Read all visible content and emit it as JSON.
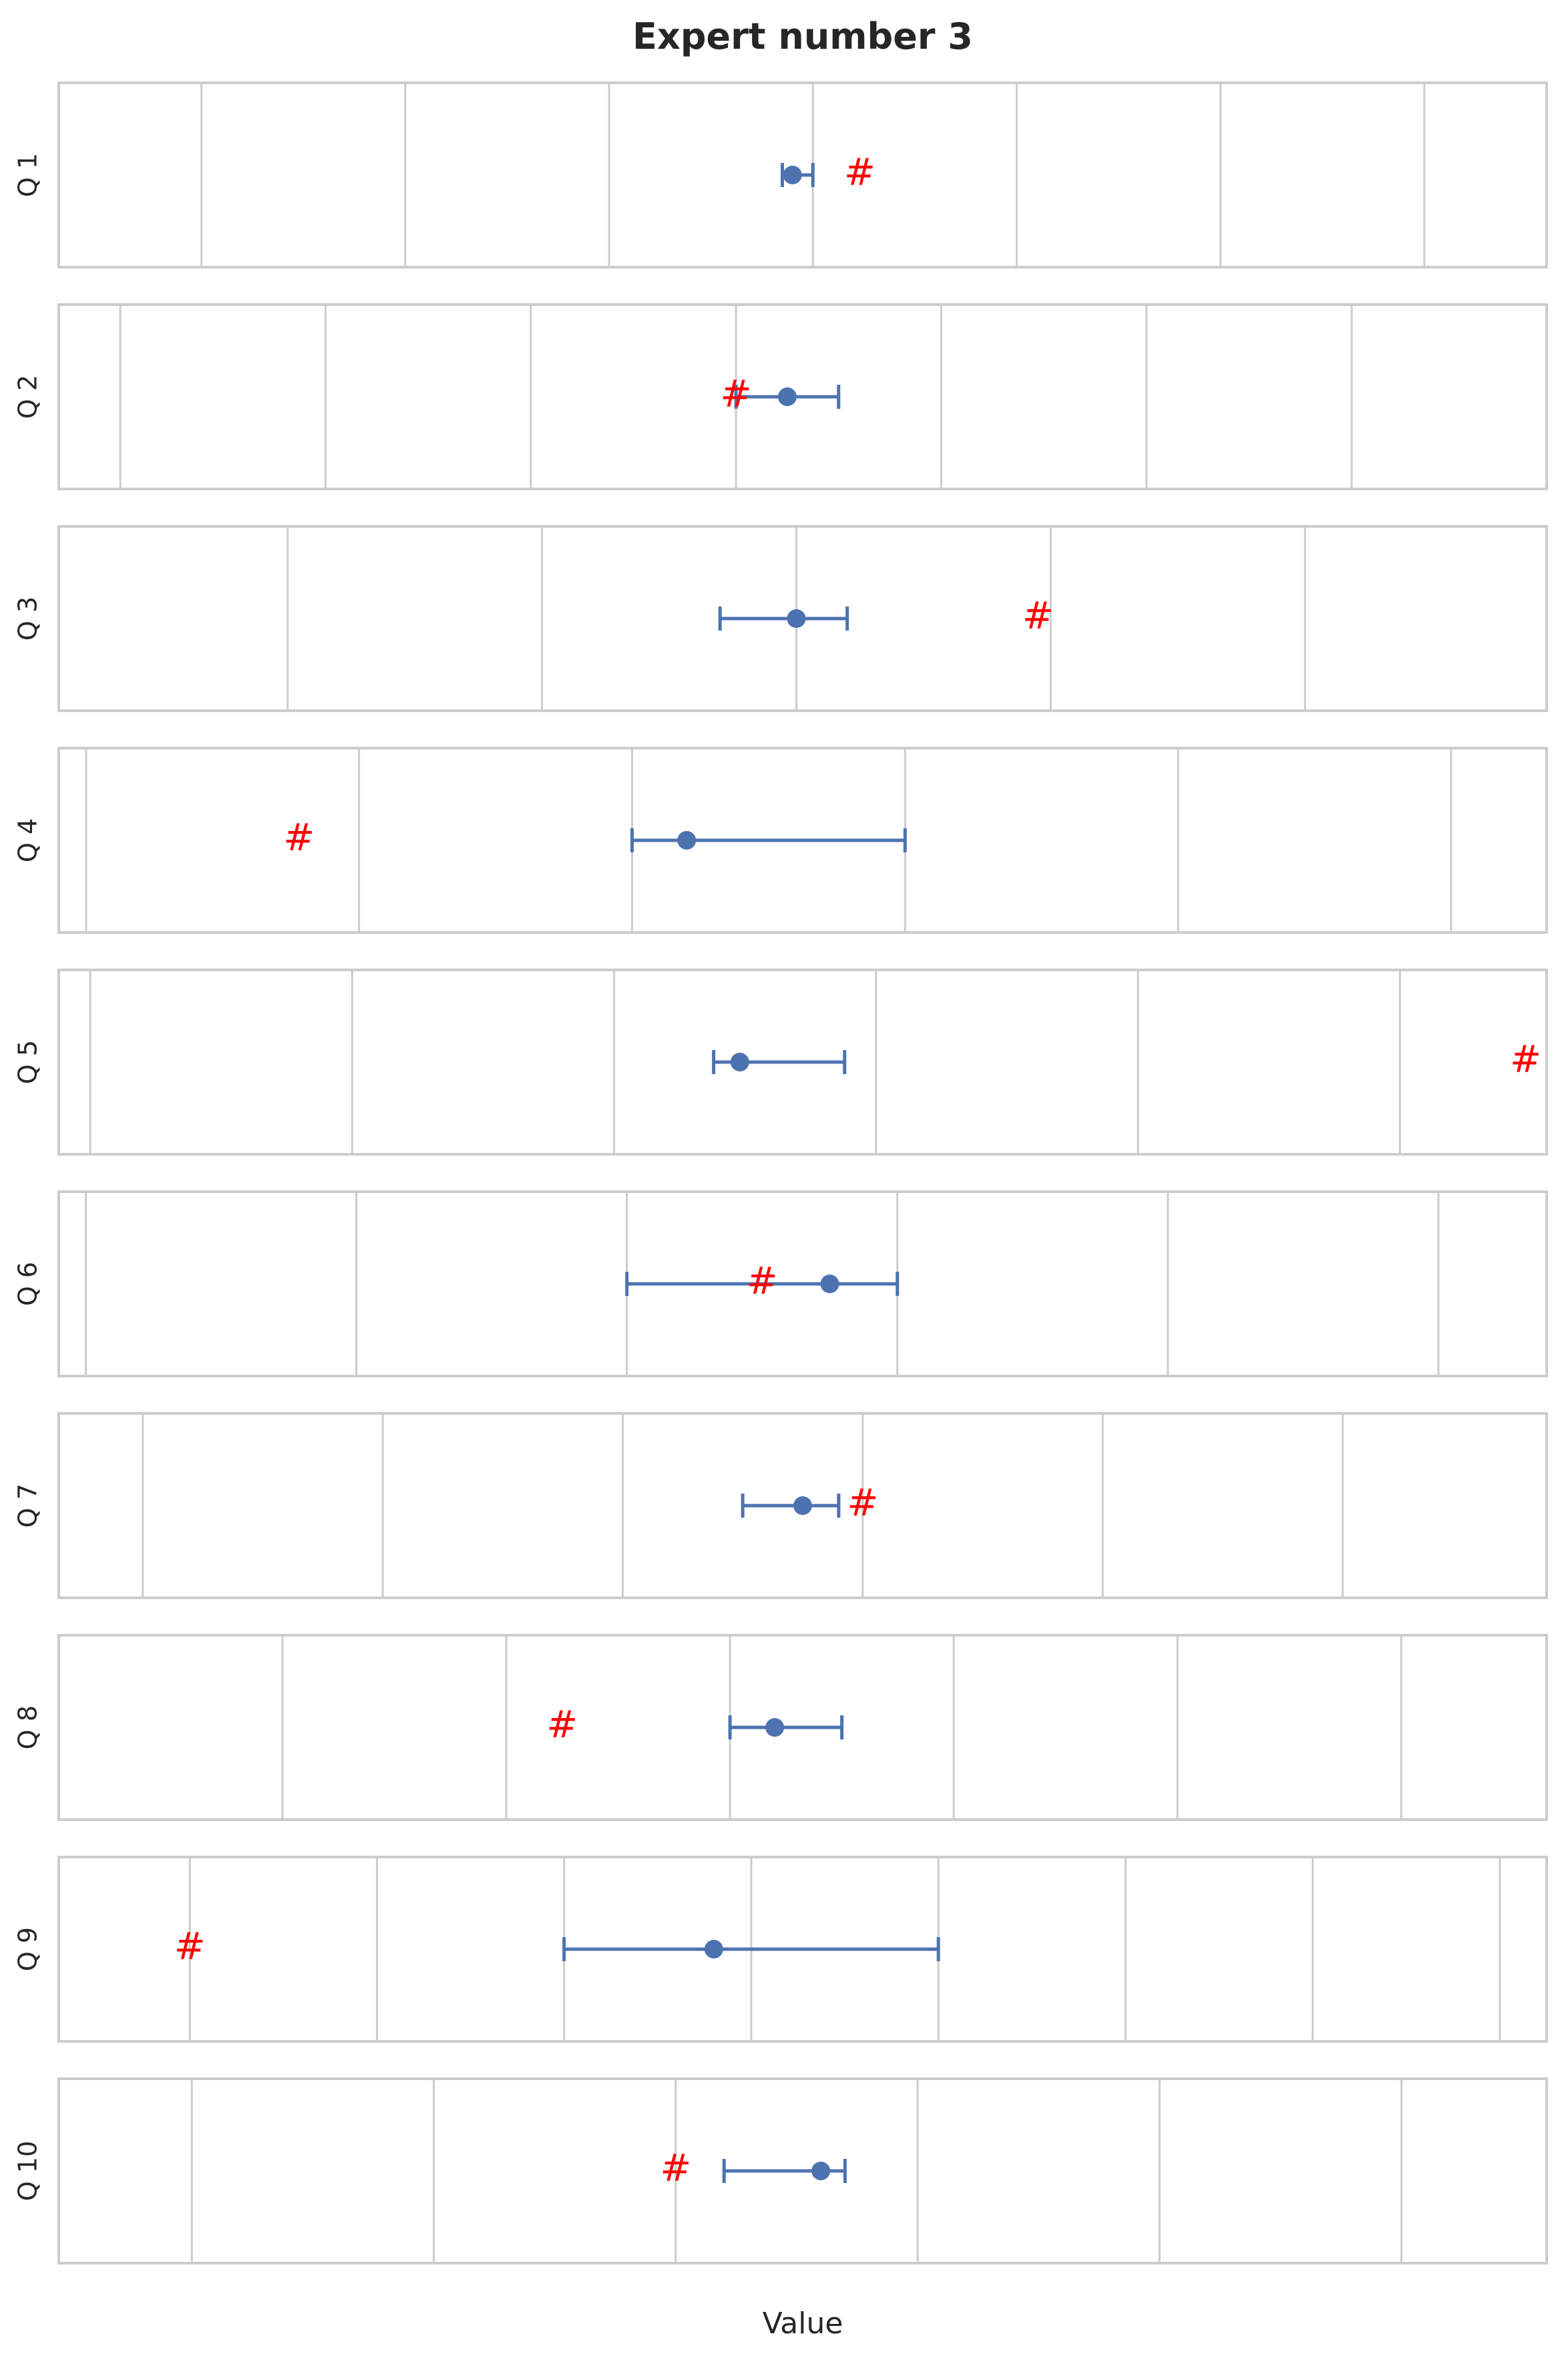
{
  "chart_data": {
    "type": "scatter",
    "title": "Expert number 3",
    "xlabel": "Value",
    "xticks_visible": false,
    "grid": "vertical",
    "colors": {
      "estimate": "#4c72b0",
      "true_value": "#ff0000",
      "grid": "#cccccc",
      "frame": "#cccccc",
      "background": "#ffffff"
    },
    "marker_symbol": "#",
    "panels": [
      {
        "label": "Q 1",
        "xlim": [
          0,
          7.3
        ],
        "grid_x": [
          0.7,
          1.7,
          2.7,
          3.7,
          4.7,
          5.7,
          6.7
        ],
        "estimate": 3.6,
        "lower": 3.55,
        "upper": 3.7,
        "true_value": 3.93
      },
      {
        "label": "Q 2",
        "xlim": [
          0,
          7.25
        ],
        "grid_x": [
          0.3,
          1.3,
          2.3,
          3.3,
          4.3,
          5.3,
          6.3
        ],
        "estimate": 3.55,
        "lower": 3.3,
        "upper": 3.8,
        "true_value": 3.3
      },
      {
        "label": "Q 3",
        "xlim": [
          0,
          5.85
        ],
        "grid_x": [
          0.9,
          1.9,
          2.9,
          3.9,
          4.9
        ],
        "estimate": 2.9,
        "lower": 2.6,
        "upper": 3.1,
        "true_value": 3.85
      },
      {
        "label": "Q 4",
        "xlim": [
          0,
          5.45
        ],
        "grid_x": [
          0.1,
          1.1,
          2.1,
          3.1,
          4.1,
          5.1
        ],
        "estimate": 2.3,
        "lower": 2.1,
        "upper": 3.1,
        "true_value": 0.88
      },
      {
        "label": "Q 5",
        "xlim": [
          0,
          5.68
        ],
        "grid_x": [
          0.12,
          1.12,
          2.12,
          3.12,
          4.12,
          5.12
        ],
        "estimate": 2.6,
        "lower": 2.5,
        "upper": 3.0,
        "true_value": 5.6
      },
      {
        "label": "Q 6",
        "xlim": [
          0,
          5.5
        ],
        "grid_x": [
          0.1,
          1.1,
          2.1,
          3.1,
          4.1,
          5.1
        ],
        "estimate": 2.85,
        "lower": 2.1,
        "upper": 3.1,
        "true_value": 2.6
      },
      {
        "label": "Q 7",
        "xlim": [
          0,
          6.2
        ],
        "grid_x": [
          0.35,
          1.35,
          2.35,
          3.35,
          4.35,
          5.35
        ],
        "estimate": 3.1,
        "lower": 2.85,
        "upper": 3.25,
        "true_value": 3.35
      },
      {
        "label": "Q 8",
        "xlim": [
          0,
          6.65
        ],
        "grid_x": [
          1.0,
          2.0,
          3.0,
          4.0,
          5.0,
          6.0
        ],
        "estimate": 3.2,
        "lower": 3.0,
        "upper": 3.5,
        "true_value": 2.25
      },
      {
        "label": "Q 9",
        "xlim": [
          0,
          7.95
        ],
        "grid_x": [
          0.7,
          1.7,
          2.7,
          3.7,
          4.7,
          5.7,
          6.7,
          7.7
        ],
        "estimate": 3.5,
        "lower": 2.7,
        "upper": 4.7,
        "true_value": 0.7
      },
      {
        "label": "Q 10",
        "xlim": [
          0,
          6.15
        ],
        "grid_x": [
          0.55,
          1.55,
          2.55,
          3.55,
          4.55,
          5.55
        ],
        "estimate": 3.15,
        "lower": 2.75,
        "upper": 3.25,
        "true_value": 2.55
      }
    ]
  }
}
